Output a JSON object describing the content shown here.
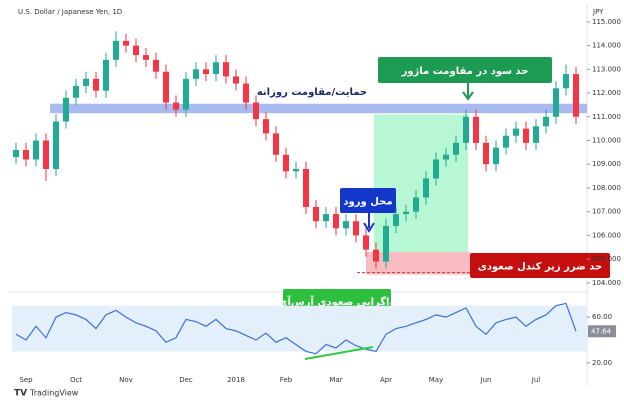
{
  "chart_data": [
    {
      "type": "candlestick",
      "title": "U.S. Dollar / Japanese Yen, 1D",
      "currency": "JPY",
      "categories": [
        null,
        "Sep",
        null,
        null,
        null,
        null,
        "Oct",
        null,
        null,
        null,
        null,
        "Nov",
        null,
        null,
        null,
        null,
        null,
        "Dec",
        null,
        null,
        null,
        null,
        "2018",
        null,
        null,
        null,
        null,
        "Feb",
        null,
        null,
        null,
        null,
        "Mar",
        null,
        null,
        null,
        null,
        "Apr",
        null,
        null,
        null,
        null,
        "May",
        null,
        null,
        null,
        null,
        "Jun",
        null,
        null,
        null,
        null,
        "Jul",
        null,
        null,
        null,
        null
      ],
      "open": [
        109.3,
        109.6,
        109.2,
        110.0,
        108.8,
        110.8,
        111.8,
        112.3,
        112.6,
        112.1,
        113.4,
        114.2,
        114.0,
        113.6,
        113.4,
        112.9,
        111.6,
        111.3,
        112.6,
        113.0,
        112.8,
        113.3,
        112.7,
        112.4,
        111.6,
        110.9,
        110.3,
        109.4,
        108.7,
        108.8,
        107.2,
        106.6,
        106.9,
        106.3,
        106.6,
        106.0,
        105.4,
        104.9,
        106.4,
        106.9,
        107.0,
        107.6,
        108.4,
        109.2,
        109.4,
        109.9,
        111.0,
        109.9,
        109.0,
        109.7,
        110.2,
        110.5,
        109.9,
        110.6,
        111.0,
        112.2,
        112.8
      ],
      "high": [
        109.9,
        109.9,
        110.3,
        110.3,
        111.1,
        112.1,
        112.6,
        112.9,
        112.9,
        113.7,
        114.6,
        114.5,
        114.3,
        113.9,
        113.7,
        113.2,
        111.9,
        112.9,
        113.3,
        113.3,
        113.6,
        113.6,
        113.0,
        112.7,
        111.9,
        111.2,
        110.6,
        109.7,
        109.1,
        109.1,
        107.5,
        107.2,
        107.2,
        106.9,
        106.9,
        106.3,
        105.7,
        106.7,
        107.2,
        107.3,
        107.9,
        108.7,
        109.5,
        109.7,
        110.2,
        111.3,
        111.3,
        110.2,
        110.0,
        110.5,
        110.8,
        110.8,
        110.9,
        111.3,
        112.5,
        113.2,
        113.1
      ],
      "low": [
        109.0,
        108.9,
        108.9,
        108.3,
        108.5,
        110.5,
        111.5,
        112.0,
        111.8,
        111.8,
        113.1,
        113.7,
        113.3,
        113.1,
        112.6,
        111.3,
        111.0,
        111.0,
        112.3,
        112.5,
        112.5,
        112.4,
        112.1,
        111.3,
        110.6,
        110.0,
        109.1,
        108.4,
        108.4,
        106.9,
        106.3,
        106.3,
        106.0,
        106.0,
        105.7,
        105.1,
        104.6,
        104.6,
        106.1,
        106.6,
        106.7,
        107.3,
        108.1,
        108.9,
        109.1,
        109.6,
        109.6,
        108.7,
        108.7,
        109.4,
        109.9,
        109.6,
        109.6,
        110.3,
        110.7,
        111.9,
        110.7
      ],
      "close": [
        109.6,
        109.2,
        110.0,
        108.8,
        110.8,
        111.8,
        112.3,
        112.6,
        112.1,
        113.4,
        114.2,
        114.0,
        113.6,
        113.4,
        112.9,
        111.6,
        111.3,
        112.6,
        113.0,
        112.8,
        113.3,
        112.7,
        112.4,
        111.6,
        110.9,
        110.3,
        109.4,
        108.7,
        108.8,
        107.2,
        106.6,
        106.9,
        106.3,
        106.6,
        106.0,
        105.4,
        104.9,
        106.4,
        106.9,
        107.0,
        107.6,
        108.4,
        109.2,
        109.4,
        109.9,
        111.0,
        109.9,
        109.0,
        109.7,
        110.2,
        110.5,
        109.9,
        110.6,
        111.0,
        112.2,
        112.8,
        111.0
      ],
      "up_color": "#22ab94",
      "down_color": "#f23645",
      "ylim": [
        103.7,
        115.5
      ],
      "yticks": [
        {
          "value": 104,
          "label": "104.000"
        },
        {
          "value": 105,
          "label": "105.000"
        },
        {
          "value": 106,
          "label": "106.000"
        },
        {
          "value": 107,
          "label": "107.000"
        },
        {
          "value": 108,
          "label": "108.000"
        },
        {
          "value": 109,
          "label": "109.000"
        },
        {
          "value": 110,
          "label": "110.000"
        },
        {
          "value": 111,
          "label": "111.000"
        },
        {
          "value": 112,
          "label": "112.000"
        },
        {
          "value": 113,
          "label": "113.000"
        },
        {
          "value": 114,
          "label": "114.000"
        },
        {
          "value": 115,
          "label": "115.000"
        }
      ],
      "annotations": [
        {
          "text": "حمایت/مقاومت روزانه",
          "range": [
            111.15,
            111.55
          ]
        },
        {
          "text": "حد سود در مقاومت ماژور",
          "range": [
            105.3,
            111.1
          ]
        },
        {
          "text": "محل ورود"
        },
        {
          "text": "حد ضرر زیر کندل صعودی",
          "range": [
            104.35,
            105.3
          ]
        },
        {
          "text": "واگرایی صعودی آرس‌آی"
        }
      ]
    },
    {
      "type": "line",
      "color": "#3d6fd6",
      "values": [
        45,
        40,
        52,
        42,
        60,
        64,
        62,
        58,
        50,
        62,
        66,
        60,
        55,
        52,
        48,
        38,
        42,
        58,
        56,
        52,
        58,
        50,
        48,
        44,
        40,
        46,
        38,
        42,
        36,
        30,
        28,
        36,
        33,
        40,
        35,
        32,
        30,
        45,
        50,
        52,
        55,
        58,
        62,
        60,
        64,
        68,
        52,
        45,
        55,
        58,
        60,
        52,
        58,
        62,
        70,
        72,
        47.64
      ],
      "band": [
        30,
        70
      ],
      "band_color": "#e3f0fb",
      "ylim": [
        12,
        75
      ],
      "yticks": [
        {
          "value": 20,
          "label": "20.00"
        },
        {
          "value": 60,
          "label": "60.00"
        }
      ]
    }
  ]
}
